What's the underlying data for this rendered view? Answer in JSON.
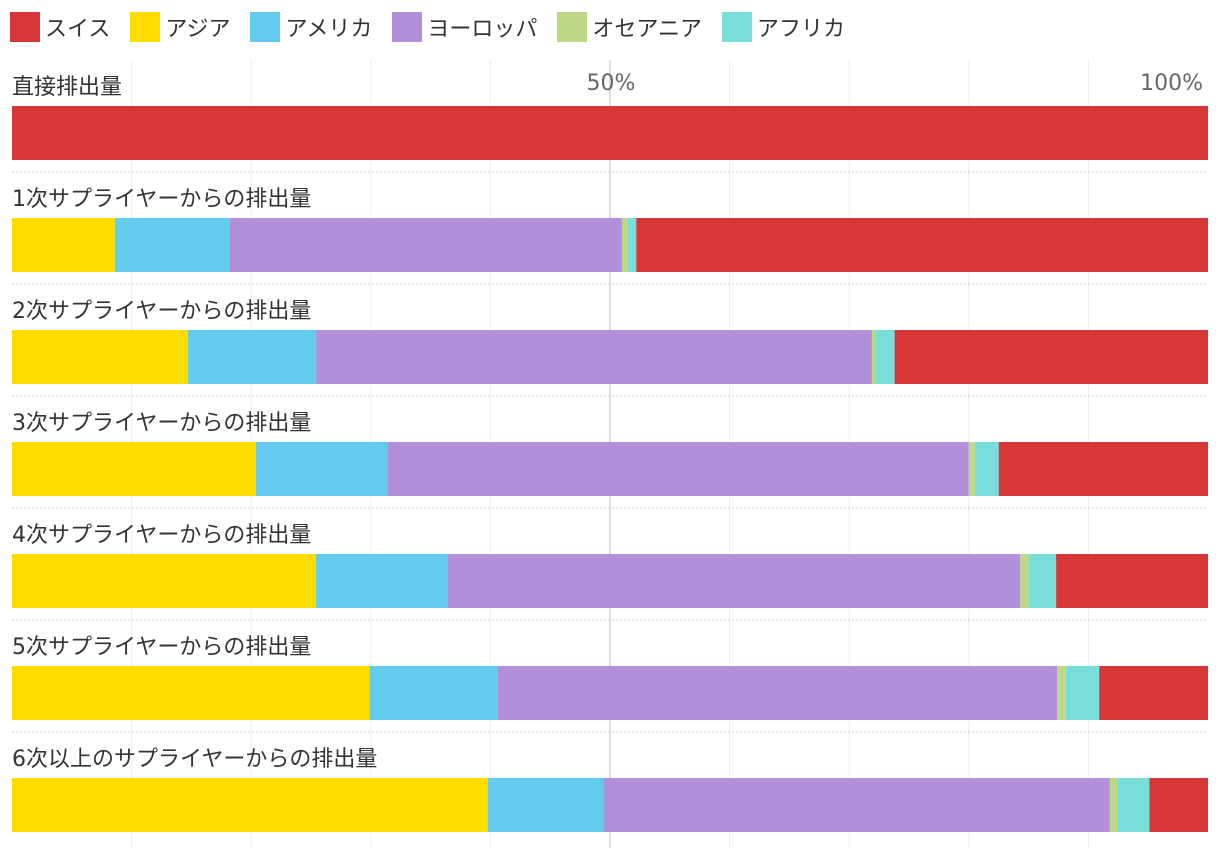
{
  "legend": [
    {
      "name": "スイス",
      "color": "#d63638"
    },
    {
      "name": "アジア",
      "color": "#ffdd00"
    },
    {
      "name": "アメリカ",
      "color": "#62cbee"
    },
    {
      "name": "ヨーロッパ",
      "color": "#b48fd9"
    },
    {
      "name": "オセアニア",
      "color": "#bdd985"
    },
    {
      "name": "アフリカ",
      "color": "#79ded9"
    }
  ],
  "axis": {
    "mid_label": "50%",
    "max_label": "100%"
  },
  "chart_data": {
    "type": "bar",
    "orientation": "horizontal",
    "stacked": true,
    "unit": "%",
    "xlim": [
      0,
      100
    ],
    "grid": true,
    "legend_position": "top",
    "categories": [
      "直接排出量",
      "1次サプライヤーからの排出量",
      "2次サプライヤーからの排出量",
      "3次サプライヤーからの排出量",
      "4次サプライヤーからの排出量",
      "5次サプライヤーからの排出量",
      "6次以上のサプライヤーからの排出量"
    ],
    "series": [
      {
        "name": "アジア",
        "color": "#ffdd00",
        "values": [
          0,
          8.6,
          14.7,
          20.4,
          25.4,
          29.9,
          39.8
        ]
      },
      {
        "name": "アメリカ",
        "color": "#62cbee",
        "values": [
          0,
          9.6,
          10.7,
          11.0,
          11.0,
          10.7,
          9.7
        ]
      },
      {
        "name": "ヨーロッパ",
        "color": "#b48fd9",
        "values": [
          0,
          32.8,
          46.5,
          48.6,
          47.9,
          46.8,
          42.3
        ]
      },
      {
        "name": "オセアニア",
        "color": "#bdd985",
        "values": [
          0,
          0.5,
          0.3,
          0.5,
          0.7,
          0.7,
          0.6
        ]
      },
      {
        "name": "アフリカ",
        "color": "#79ded9",
        "values": [
          0,
          0.7,
          1.6,
          2.0,
          2.3,
          2.8,
          2.7
        ]
      },
      {
        "name": "スイス",
        "color": "#d63638",
        "values": [
          100,
          47.8,
          26.2,
          17.5,
          12.7,
          9.1,
          4.9
        ]
      }
    ]
  }
}
